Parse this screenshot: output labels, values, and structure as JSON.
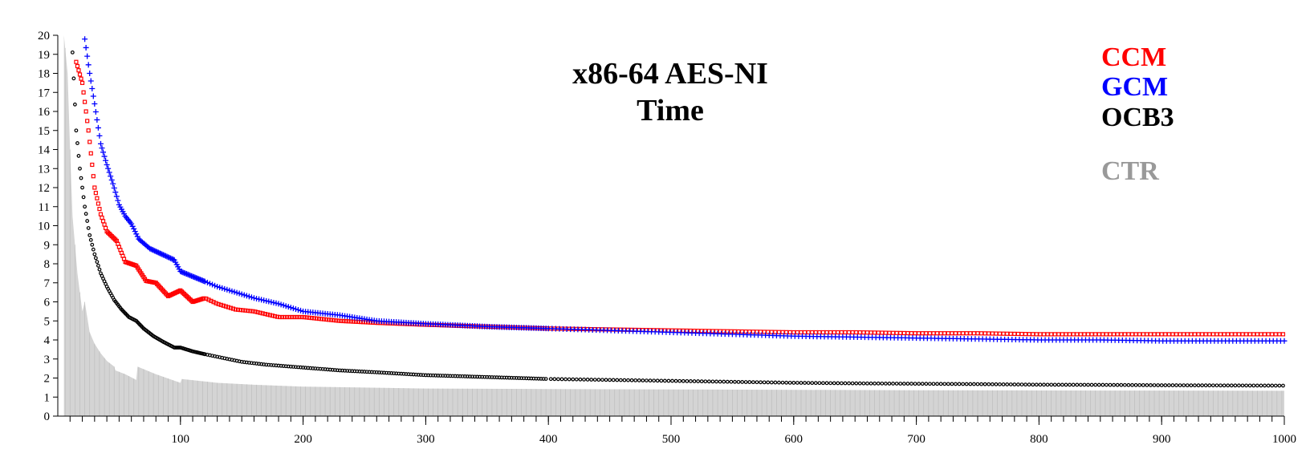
{
  "chart_data": {
    "type": "scatter",
    "title": [
      "x86-64 AES-NI",
      "Time"
    ],
    "xlabel": "",
    "ylabel": "",
    "xlim": [
      0,
      1000
    ],
    "ylim": [
      0,
      20
    ],
    "x_ticks": [
      100,
      200,
      300,
      400,
      500,
      600,
      700,
      800,
      900,
      1000
    ],
    "y_ticks": [
      0,
      1,
      2,
      3,
      4,
      5,
      6,
      7,
      8,
      9,
      10,
      11,
      12,
      13,
      14,
      15,
      16,
      17,
      18,
      19,
      20
    ],
    "grid": false,
    "legend": {
      "placement": "top-right"
    },
    "series": [
      {
        "name": "CCM",
        "color": "#ff0000",
        "marker": "square",
        "points": [
          [
            15,
            18.6
          ],
          [
            20,
            17.5
          ],
          [
            25,
            15.0
          ],
          [
            30,
            12.0
          ],
          [
            35,
            10.6
          ],
          [
            40,
            9.7
          ],
          [
            48,
            9.2
          ],
          [
            55,
            8.1
          ],
          [
            64,
            7.9
          ],
          [
            72,
            7.1
          ],
          [
            80,
            7.0
          ],
          [
            90,
            6.3
          ],
          [
            100,
            6.6
          ],
          [
            110,
            6.0
          ],
          [
            120,
            6.2
          ],
          [
            130,
            5.9
          ],
          [
            145,
            5.6
          ],
          [
            160,
            5.5
          ],
          [
            180,
            5.2
          ],
          [
            200,
            5.2
          ],
          [
            230,
            5.0
          ],
          [
            260,
            4.9
          ],
          [
            300,
            4.8
          ],
          [
            350,
            4.7
          ],
          [
            400,
            4.6
          ],
          [
            450,
            4.55
          ],
          [
            500,
            4.5
          ],
          [
            550,
            4.45
          ],
          [
            600,
            4.4
          ],
          [
            650,
            4.4
          ],
          [
            700,
            4.35
          ],
          [
            750,
            4.35
          ],
          [
            800,
            4.3
          ],
          [
            850,
            4.3
          ],
          [
            900,
            4.3
          ],
          [
            950,
            4.3
          ],
          [
            1000,
            4.3
          ]
        ]
      },
      {
        "name": "GCM",
        "color": "#0000ff",
        "marker": "plus",
        "points": [
          [
            22,
            19.8
          ],
          [
            26,
            18.0
          ],
          [
            30,
            16.4
          ],
          [
            35,
            14.3
          ],
          [
            40,
            13.2
          ],
          [
            45,
            12.2
          ],
          [
            50,
            11.1
          ],
          [
            55,
            10.5
          ],
          [
            60,
            10.1
          ],
          [
            66,
            9.3
          ],
          [
            75,
            8.8
          ],
          [
            85,
            8.5
          ],
          [
            95,
            8.2
          ],
          [
            100,
            7.6
          ],
          [
            115,
            7.2
          ],
          [
            130,
            6.8
          ],
          [
            145,
            6.5
          ],
          [
            160,
            6.2
          ],
          [
            180,
            5.9
          ],
          [
            200,
            5.5
          ],
          [
            230,
            5.3
          ],
          [
            260,
            5.0
          ],
          [
            300,
            4.85
          ],
          [
            350,
            4.7
          ],
          [
            400,
            4.6
          ],
          [
            450,
            4.5
          ],
          [
            500,
            4.4
          ],
          [
            550,
            4.3
          ],
          [
            600,
            4.2
          ],
          [
            650,
            4.15
          ],
          [
            700,
            4.1
          ],
          [
            750,
            4.05
          ],
          [
            800,
            4.0
          ],
          [
            850,
            4.0
          ],
          [
            900,
            3.95
          ],
          [
            950,
            3.95
          ],
          [
            1000,
            3.95
          ]
        ]
      },
      {
        "name": "OCB3",
        "color": "#000000",
        "marker": "circle",
        "points": [
          [
            12,
            19.1
          ],
          [
            15,
            15.0
          ],
          [
            18,
            13.0
          ],
          [
            22,
            11.0
          ],
          [
            26,
            9.5
          ],
          [
            30,
            8.5
          ],
          [
            35,
            7.5
          ],
          [
            40,
            6.8
          ],
          [
            46,
            6.1
          ],
          [
            52,
            5.6
          ],
          [
            58,
            5.2
          ],
          [
            64,
            5.0
          ],
          [
            70,
            4.6
          ],
          [
            78,
            4.2
          ],
          [
            86,
            3.9
          ],
          [
            95,
            3.6
          ],
          [
            100,
            3.6
          ],
          [
            110,
            3.4
          ],
          [
            120,
            3.25
          ],
          [
            135,
            3.05
          ],
          [
            150,
            2.85
          ],
          [
            170,
            2.7
          ],
          [
            190,
            2.6
          ],
          [
            200,
            2.55
          ],
          [
            230,
            2.4
          ],
          [
            260,
            2.3
          ],
          [
            300,
            2.15
          ],
          [
            350,
            2.05
          ],
          [
            400,
            1.95
          ],
          [
            450,
            1.9
          ],
          [
            500,
            1.85
          ],
          [
            550,
            1.8
          ],
          [
            600,
            1.75
          ],
          [
            650,
            1.72
          ],
          [
            700,
            1.7
          ],
          [
            750,
            1.68
          ],
          [
            800,
            1.65
          ],
          [
            850,
            1.64
          ],
          [
            900,
            1.62
          ],
          [
            950,
            1.61
          ],
          [
            1000,
            1.6
          ]
        ]
      },
      {
        "name": "CTR",
        "color": "#aaaaaa",
        "marker": "bar",
        "points": [
          [
            5,
            20
          ],
          [
            8,
            18
          ],
          [
            10,
            14
          ],
          [
            12,
            10.5
          ],
          [
            16,
            7.5
          ],
          [
            20,
            5.5
          ],
          [
            22,
            6.0
          ],
          [
            26,
            4.4
          ],
          [
            30,
            3.8
          ],
          [
            35,
            3.3
          ],
          [
            40,
            2.9
          ],
          [
            46,
            2.6
          ],
          [
            47,
            2.4
          ],
          [
            55,
            2.2
          ],
          [
            64,
            1.9
          ],
          [
            65,
            2.6
          ],
          [
            80,
            2.2
          ],
          [
            100,
            1.75
          ],
          [
            101,
            1.95
          ],
          [
            130,
            1.75
          ],
          [
            160,
            1.65
          ],
          [
            200,
            1.55
          ],
          [
            250,
            1.5
          ],
          [
            300,
            1.45
          ],
          [
            400,
            1.42
          ],
          [
            500,
            1.4
          ],
          [
            600,
            1.38
          ],
          [
            700,
            1.36
          ],
          [
            800,
            1.35
          ],
          [
            900,
            1.34
          ],
          [
            1000,
            1.33
          ]
        ]
      }
    ]
  }
}
